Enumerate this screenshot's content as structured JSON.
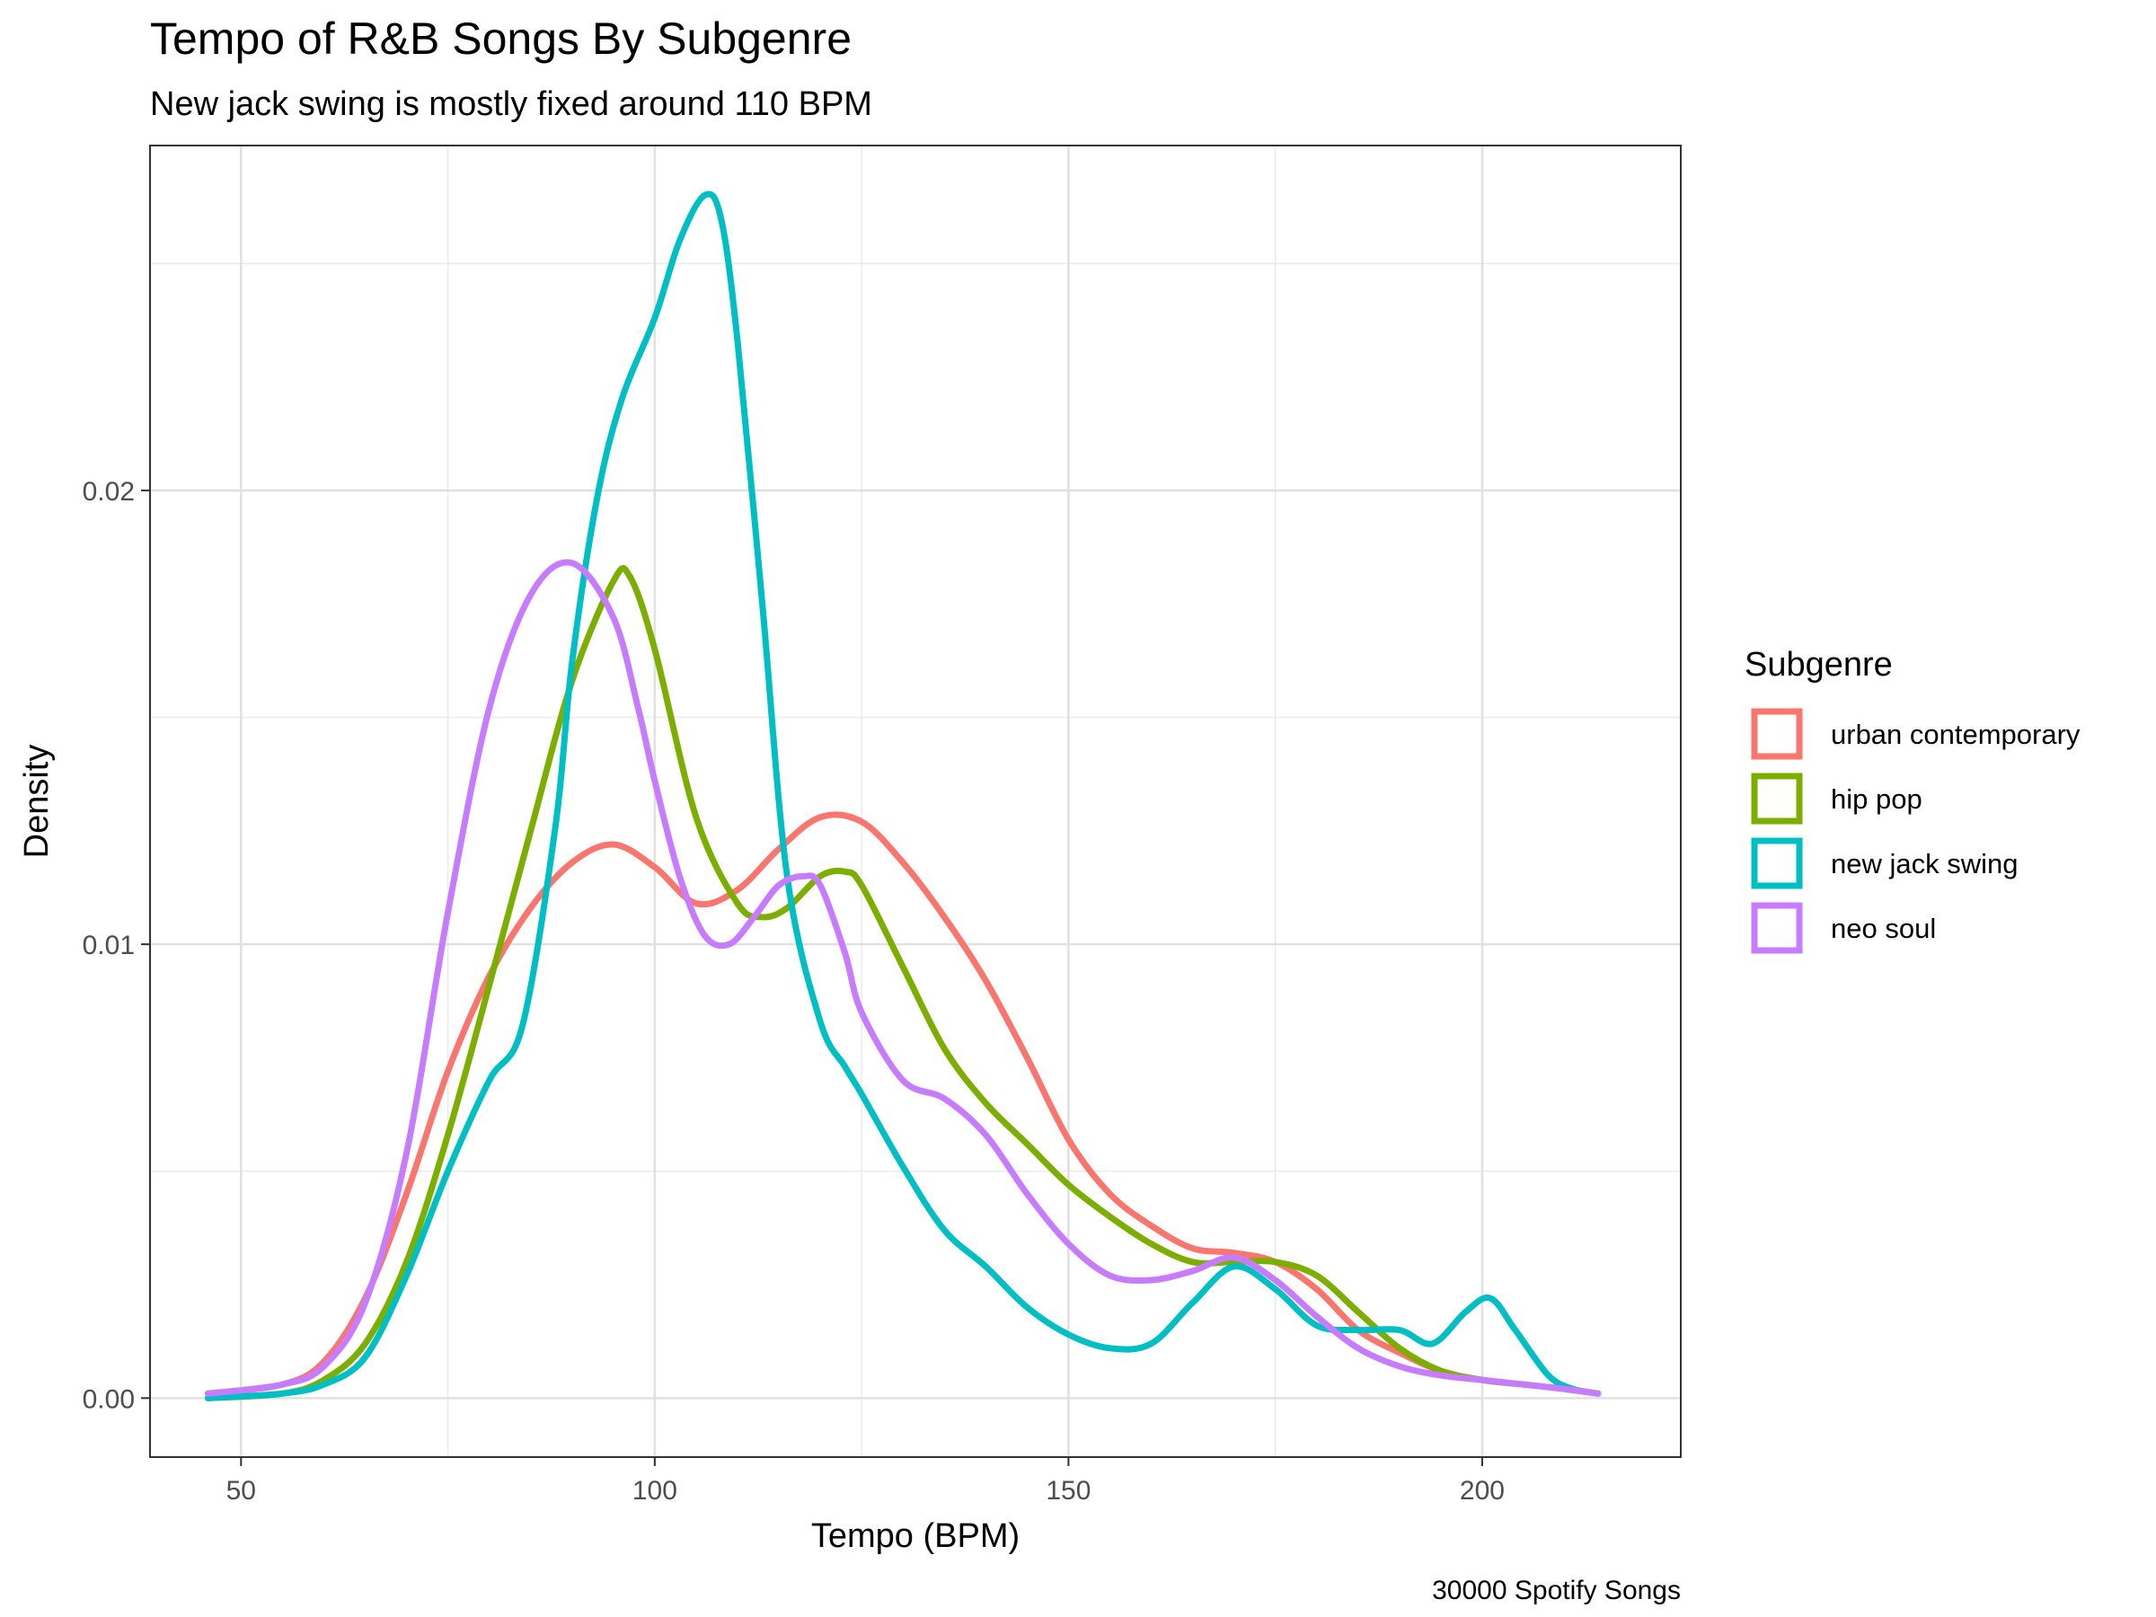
{
  "chart_data": {
    "type": "line",
    "title": "Tempo of R&B Songs By Subgenre",
    "subtitle": "New jack swing is mostly fixed around 110 BPM",
    "xlabel": "Tempo (BPM)",
    "ylabel": "Density",
    "caption": "30000 Spotify Songs",
    "xlim": [
      39,
      224
    ],
    "ylim": [
      -0.0013,
      0.0276
    ],
    "x_ticks": [
      50,
      100,
      150,
      200
    ],
    "x_tick_labels": [
      "50",
      "100",
      "150",
      "200"
    ],
    "y_ticks": [
      0.0,
      0.01,
      0.02
    ],
    "y_tick_labels": [
      "0.00",
      "0.01",
      "0.02"
    ],
    "grid": true,
    "legend": {
      "title": "Subgenre",
      "position": "right"
    },
    "series": [
      {
        "name": "urban contemporary",
        "color": "#F8766D",
        "x": [
          46,
          55,
          60,
          65,
          70,
          75,
          80,
          85,
          90,
          95,
          100,
          105,
          110,
          115,
          120,
          125,
          130,
          135,
          140,
          145,
          150,
          155,
          160,
          165,
          170,
          175,
          180,
          185,
          190,
          195,
          200,
          205,
          210,
          214
        ],
        "y": [
          0.0001,
          0.0003,
          0.0008,
          0.0022,
          0.0045,
          0.0072,
          0.0093,
          0.0108,
          0.0118,
          0.0122,
          0.0117,
          0.0109,
          0.0112,
          0.0121,
          0.0128,
          0.0127,
          0.0118,
          0.0106,
          0.0092,
          0.0075,
          0.0057,
          0.0045,
          0.0038,
          0.0033,
          0.0032,
          0.003,
          0.0024,
          0.0015,
          0.001,
          0.0006,
          0.0004,
          0.0003,
          0.0002,
          0.0001
        ]
      },
      {
        "name": "hip pop",
        "color": "#7CAE00",
        "x": [
          46,
          55,
          60,
          65,
          70,
          75,
          80,
          85,
          90,
          95,
          97,
          100,
          105,
          110,
          113,
          116,
          120,
          123,
          125,
          130,
          135,
          140,
          145,
          150,
          155,
          160,
          165,
          170,
          175,
          180,
          185,
          190,
          195,
          200,
          205,
          210,
          214
        ],
        "y": [
          0.0,
          0.0001,
          0.0004,
          0.0012,
          0.003,
          0.0058,
          0.0091,
          0.0125,
          0.0158,
          0.018,
          0.0181,
          0.0165,
          0.0128,
          0.0109,
          0.0106,
          0.0108,
          0.0115,
          0.0116,
          0.0113,
          0.0095,
          0.0077,
          0.0065,
          0.0056,
          0.0047,
          0.004,
          0.0034,
          0.003,
          0.003,
          0.003,
          0.0027,
          0.0019,
          0.0011,
          0.0006,
          0.0004,
          0.0003,
          0.0002,
          0.0001
        ]
      },
      {
        "name": "new jack swing",
        "color": "#00BFC4",
        "x": [
          46,
          55,
          60,
          65,
          70,
          75,
          80,
          84,
          88,
          90,
          93,
          96,
          100,
          103,
          106,
          108,
          110,
          113,
          116,
          120,
          123,
          125,
          130,
          135,
          140,
          145,
          150,
          155,
          160,
          165,
          170,
          175,
          180,
          185,
          190,
          194,
          198,
          201,
          204,
          208,
          211,
          214
        ],
        "y": [
          0.0,
          0.0001,
          0.0003,
          0.0009,
          0.0027,
          0.005,
          0.007,
          0.0082,
          0.0126,
          0.0162,
          0.0198,
          0.022,
          0.0238,
          0.0255,
          0.0265,
          0.026,
          0.0233,
          0.0175,
          0.0115,
          0.0083,
          0.0073,
          0.0067,
          0.0051,
          0.0037,
          0.0029,
          0.002,
          0.0014,
          0.0011,
          0.0012,
          0.0021,
          0.0029,
          0.0024,
          0.0016,
          0.0015,
          0.0015,
          0.0012,
          0.0019,
          0.0022,
          0.0015,
          0.0005,
          0.0002,
          0.0001
        ]
      },
      {
        "name": "neo soul",
        "color": "#C77CFF",
        "x": [
          46,
          55,
          60,
          65,
          70,
          75,
          80,
          85,
          90,
          95,
          98,
          100,
          103,
          106,
          109,
          112,
          115,
          118,
          120,
          123,
          125,
          130,
          135,
          140,
          145,
          150,
          155,
          160,
          165,
          170,
          175,
          180,
          185,
          190,
          195,
          200,
          205,
          210,
          214
        ],
        "y": [
          0.0001,
          0.0003,
          0.0007,
          0.0021,
          0.0054,
          0.0107,
          0.0152,
          0.0177,
          0.0184,
          0.0172,
          0.0152,
          0.0136,
          0.0115,
          0.0102,
          0.01,
          0.0106,
          0.0113,
          0.0115,
          0.0113,
          0.0098,
          0.0085,
          0.007,
          0.0066,
          0.0058,
          0.0045,
          0.0034,
          0.0027,
          0.0026,
          0.0028,
          0.0031,
          0.0026,
          0.0018,
          0.0011,
          0.0007,
          0.0005,
          0.0004,
          0.0003,
          0.0002,
          0.0001
        ]
      }
    ]
  }
}
